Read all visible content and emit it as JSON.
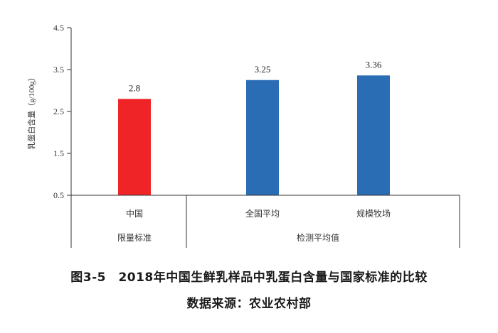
{
  "chart_data": {
    "type": "bar",
    "ylabel": "乳蛋白含量（g/100g）",
    "ylim": [
      0.5,
      4.5
    ],
    "yticks": [
      "0.5",
      "1.5",
      "2.5",
      "3.5",
      "4.5"
    ],
    "ytick_values": [
      0.5,
      1.5,
      2.5,
      3.5,
      4.5
    ],
    "categories": [
      "中国",
      "全国平均",
      "规模牧场"
    ],
    "values": [
      2.8,
      3.25,
      3.36
    ],
    "value_labels": [
      "2.8",
      "3.25",
      "3.36"
    ],
    "bar_colors": [
      "#ee2427",
      "#2a6db5",
      "#2a6db5"
    ],
    "groups": [
      {
        "label": "限量标准",
        "categories": [
          "中国"
        ]
      },
      {
        "label": "检测平均值",
        "categories": [
          "全国平均",
          "规模牧场"
        ]
      }
    ],
    "grid": false,
    "legend": "none"
  },
  "caption": "图3-5　2018年中国生鲜乳样品中乳蛋白含量与国家标准的比较",
  "source": "数据来源：农业农村部",
  "colors": {
    "axis": "#333333",
    "text": "#333333"
  }
}
